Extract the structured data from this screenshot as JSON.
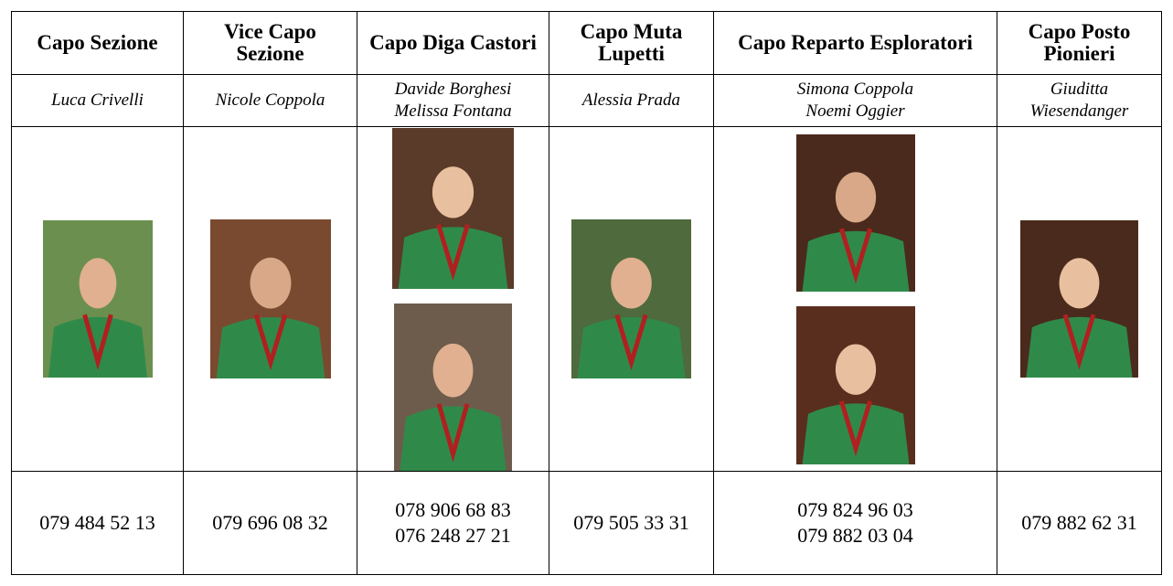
{
  "table": {
    "header": [
      "Capo Sezione",
      "Vice Capo Sezione",
      "Capo Diga Castori",
      "Capo Muta Lupetti",
      "Capo Reparto Esploratori",
      "Capo Posto Pionieri"
    ],
    "names": [
      [
        "Luca Crivelli"
      ],
      [
        "Nicole Coppola"
      ],
      [
        "Davide Borghesi",
        "Melissa Fontana"
      ],
      [
        "Alessia Prada"
      ],
      [
        "Simona Coppola",
        "Noemi Oggier"
      ],
      [
        "Giuditta Wiesendanger"
      ]
    ],
    "phones": [
      [
        "079 484 52 13"
      ],
      [
        "079 696 08 32"
      ],
      [
        "078 906 68 83",
        "076 248 27 21"
      ],
      [
        "079 505 33 31"
      ],
      [
        "079 824 96 03",
        "079 882 03 04"
      ],
      [
        "079 882 62 31"
      ]
    ]
  }
}
